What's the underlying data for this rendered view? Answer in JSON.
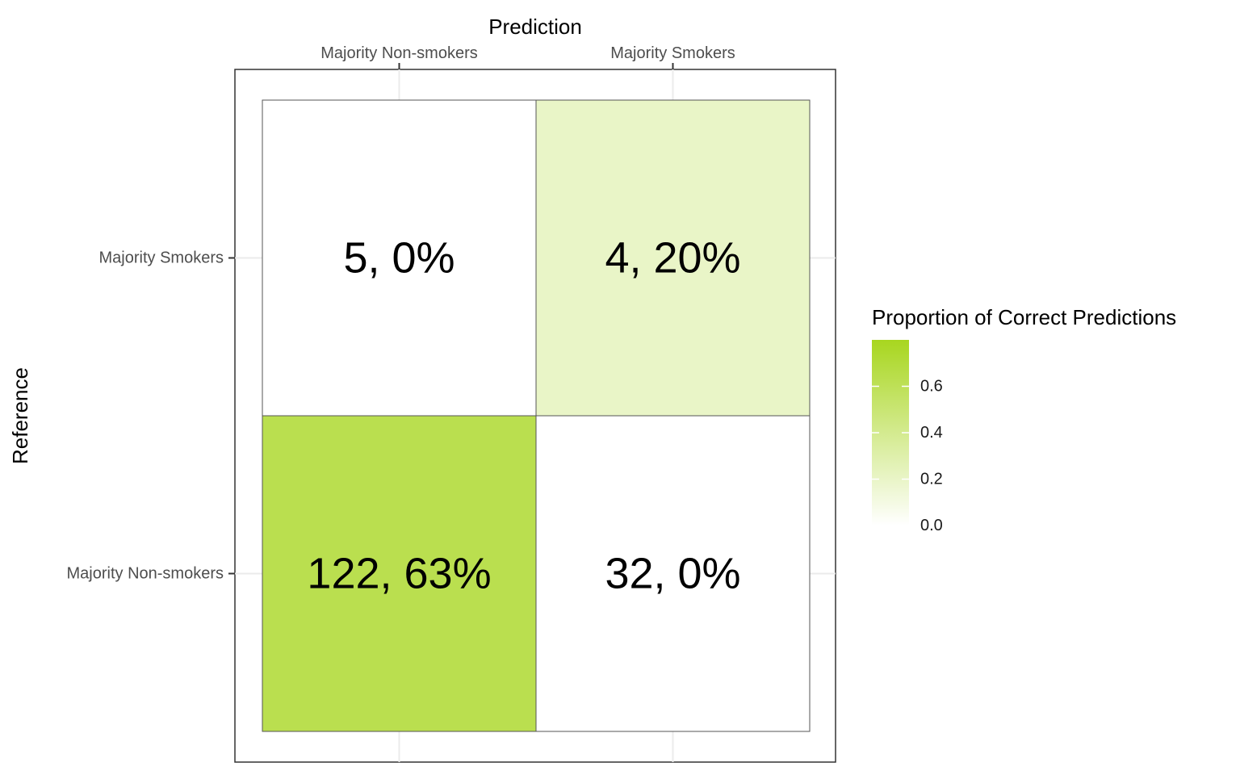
{
  "chart_data": {
    "type": "heatmap",
    "x_title": "Prediction",
    "y_title": "Reference",
    "x_categories": [
      "Majority Non-smokers",
      "Majority Smokers"
    ],
    "y_categories": [
      "Majority Smokers",
      "Majority Non-smokers"
    ],
    "cells": [
      {
        "prediction": "Majority Non-smokers",
        "reference": "Majority Smokers",
        "count": 5,
        "proportion": 0.0,
        "label": "5, 0%"
      },
      {
        "prediction": "Majority Smokers",
        "reference": "Majority Smokers",
        "count": 4,
        "proportion": 0.2,
        "label": "4, 20%"
      },
      {
        "prediction": "Majority Non-smokers",
        "reference": "Majority Non-smokers",
        "count": 122,
        "proportion": 0.63,
        "label": "122, 63%"
      },
      {
        "prediction": "Majority Smokers",
        "reference": "Majority Non-smokers",
        "count": 32,
        "proportion": 0.0,
        "label": "32, 0%"
      }
    ],
    "legend": {
      "title": "Proportion of Correct Predictions",
      "ticks": [
        "0.0",
        "0.2",
        "0.4",
        "0.6"
      ],
      "tick_values": [
        0.0,
        0.2,
        0.4,
        0.6
      ],
      "range": [
        0,
        0.8
      ],
      "low_color": "#ffffff",
      "high_color": "#a8d61f"
    },
    "x_axis_position": "top",
    "grid": true,
    "legend_position": "right"
  }
}
